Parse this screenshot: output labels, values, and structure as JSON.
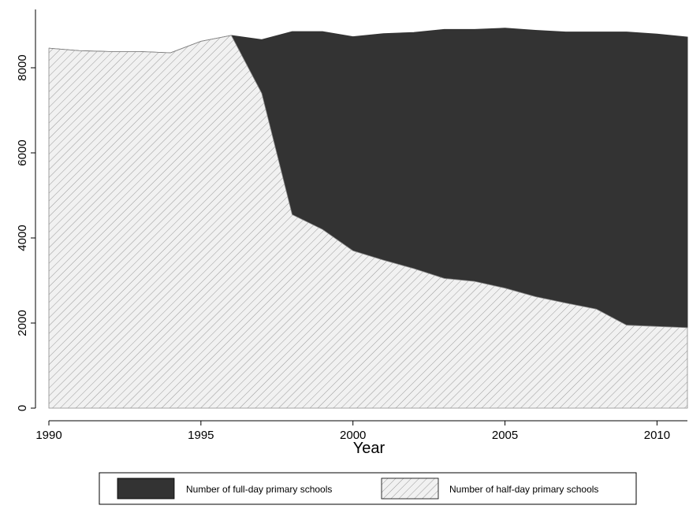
{
  "chart_data": {
    "type": "area",
    "stacked": true,
    "xlabel": "Year",
    "ylabel": "",
    "xlim": [
      1990,
      2011
    ],
    "ylim": [
      0,
      9000
    ],
    "x_ticks": [
      1990,
      1995,
      2000,
      2005,
      2010
    ],
    "y_ticks": [
      0,
      2000,
      4000,
      6000,
      8000
    ],
    "x_tick_labels": [
      "1990",
      "1995",
      "2000",
      "2005",
      "2010"
    ],
    "y_tick_labels": [
      "0",
      "2000",
      "4000",
      "6000",
      "8000"
    ],
    "grid": false,
    "legend_position": "bottom",
    "x": [
      1990,
      1991,
      1992,
      1993,
      1994,
      1995,
      1996,
      1997,
      1998,
      1999,
      2000,
      2001,
      2002,
      2003,
      2004,
      2005,
      2006,
      2007,
      2008,
      2009,
      2010,
      2011
    ],
    "series": [
      {
        "name": "Number of half-day primary schools",
        "color": "#f1f1f1",
        "hatch_color": "#9a9a9a",
        "values": [
          8460,
          8400,
          8380,
          8380,
          8350,
          8620,
          8760,
          7400,
          4550,
          4200,
          3700,
          3480,
          3280,
          3050,
          2980,
          2820,
          2620,
          2470,
          2330,
          1950,
          1920,
          1890
        ]
      },
      {
        "name": "Number of full-day primary schools",
        "color": "#333333",
        "values": [
          0,
          0,
          0,
          0,
          0,
          0,
          0,
          1260,
          4300,
          4650,
          5030,
          5320,
          5550,
          5850,
          5920,
          6110,
          6260,
          6370,
          6510,
          6890,
          6870,
          6830
        ]
      }
    ]
  }
}
